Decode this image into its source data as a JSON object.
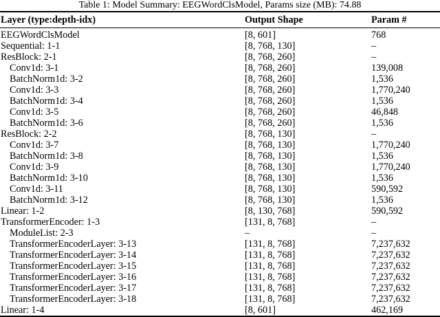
{
  "caption": "Table 1: Model Summary: EEGWordClsModel, Params size (MB): 74.88",
  "headers": [
    "Layer (type:depth-idx)",
    "Output Shape",
    "Param #"
  ],
  "rows": [
    {
      "layer": "EEGWordClsModel",
      "shape": "[8, 601]",
      "params": "768",
      "indent": 0
    },
    {
      "layer": "Sequential: 1-1",
      "shape": "[8, 768, 130]",
      "params": "–",
      "indent": 0
    },
    {
      "layer": "ResBlock: 2-1",
      "shape": "[8, 768, 260]",
      "params": "–",
      "indent": 0
    },
    {
      "layer": "Conv1d: 3-1",
      "shape": "[8, 768, 260]",
      "params": "139,008",
      "indent": 1
    },
    {
      "layer": "BatchNorm1d: 3-2",
      "shape": "[8, 768, 260]",
      "params": "1,536",
      "indent": 1
    },
    {
      "layer": "Conv1d: 3-3",
      "shape": "[8, 768, 260]",
      "params": "1,770,240",
      "indent": 1
    },
    {
      "layer": "BatchNorm1d: 3-4",
      "shape": "[8, 768, 260]",
      "params": "1,536",
      "indent": 1
    },
    {
      "layer": "Conv1d: 3-5",
      "shape": "[8, 768, 260]",
      "params": "46,848",
      "indent": 1
    },
    {
      "layer": "BatchNorm1d: 3-6",
      "shape": "[8, 768, 260]",
      "params": "1,536",
      "indent": 1
    },
    {
      "layer": "ResBlock: 2-2",
      "shape": "[8, 768, 130]",
      "params": "–",
      "indent": 0
    },
    {
      "layer": "Conv1d: 3-7",
      "shape": "[8, 768, 130]",
      "params": "1,770,240",
      "indent": 1
    },
    {
      "layer": "BatchNorm1d: 3-8",
      "shape": "[8, 768, 130]",
      "params": "1,536",
      "indent": 1
    },
    {
      "layer": "Conv1d: 3-9",
      "shape": "[8, 768, 130]",
      "params": "1,770,240",
      "indent": 1
    },
    {
      "layer": "BatchNorm1d: 3-10",
      "shape": "[8, 768, 130]",
      "params": "1,536",
      "indent": 1
    },
    {
      "layer": "Conv1d: 3-11",
      "shape": "[8, 768, 130]",
      "params": "590,592",
      "indent": 1
    },
    {
      "layer": "BatchNorm1d: 3-12",
      "shape": "[8, 768, 130]",
      "params": "1,536",
      "indent": 1
    },
    {
      "layer": "Linear: 1-2",
      "shape": "[8, 130, 768]",
      "params": "590,592",
      "indent": 0
    },
    {
      "layer": "TransformerEncoder: 1-3",
      "shape": "[131, 8, 768]",
      "params": "–",
      "indent": 0
    },
    {
      "layer": "ModuleList: 2-3",
      "shape": "–",
      "params": "–",
      "indent": 1
    },
    {
      "layer": "TransformerEncoderLayer: 3-13",
      "shape": "[131, 8, 768]",
      "params": "7,237,632",
      "indent": 1
    },
    {
      "layer": "TransformerEncoderLayer: 3-14",
      "shape": "[131, 8, 768]",
      "params": "7,237,632",
      "indent": 1
    },
    {
      "layer": "TransformerEncoderLayer: 3-15",
      "shape": "[131, 8, 768]",
      "params": "7,237,632",
      "indent": 1
    },
    {
      "layer": "TransformerEncoderLayer: 3-16",
      "shape": "[131, 8, 768]",
      "params": "7,237,632",
      "indent": 1
    },
    {
      "layer": "TransformerEncoderLayer: 3-17",
      "shape": "[131, 8, 768]",
      "params": "7,237,632",
      "indent": 1
    },
    {
      "layer": "TransformerEncoderLayer: 3-18",
      "shape": "[131, 8, 768]",
      "params": "7,237,632",
      "indent": 1
    },
    {
      "layer": "Linear: 1-4",
      "shape": "[8, 601]",
      "params": "462,169",
      "indent": 0
    }
  ]
}
